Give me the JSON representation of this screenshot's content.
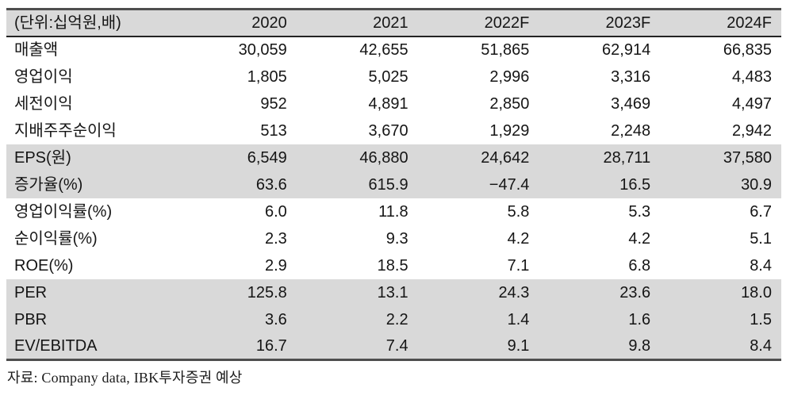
{
  "colors": {
    "row_shade": "#d9d9d9",
    "border_dark": "#4e4e4e",
    "header_rule": "#232323",
    "text": "#151515"
  },
  "table": {
    "unit_label": "(단위:십억원,배)",
    "columns": [
      "2020",
      "2021",
      "2022F",
      "2023F",
      "2024F"
    ],
    "rows": [
      {
        "label": "매출액",
        "values": [
          "30,059",
          "42,655",
          "51,865",
          "62,914",
          "66,835"
        ],
        "shaded": false
      },
      {
        "label": "영업이익",
        "values": [
          "1,805",
          "5,025",
          "2,996",
          "3,316",
          "4,483"
        ],
        "shaded": false
      },
      {
        "label": "세전이익",
        "values": [
          "952",
          "4,891",
          "2,850",
          "3,469",
          "4,497"
        ],
        "shaded": false
      },
      {
        "label": "지배주주순이익",
        "values": [
          "513",
          "3,670",
          "1,929",
          "2,248",
          "2,942"
        ],
        "shaded": false
      },
      {
        "label": "EPS(원)",
        "values": [
          "6,549",
          "46,880",
          "24,642",
          "28,711",
          "37,580"
        ],
        "shaded": true
      },
      {
        "label": "증가율(%)",
        "values": [
          "63.6",
          "615.9",
          "−47.4",
          "16.5",
          "30.9"
        ],
        "shaded": true
      },
      {
        "label": "영업이익률(%)",
        "values": [
          "6.0",
          "11.8",
          "5.8",
          "5.3",
          "6.7"
        ],
        "shaded": false
      },
      {
        "label": "순이익률(%)",
        "values": [
          "2.3",
          "9.3",
          "4.2",
          "4.2",
          "5.1"
        ],
        "shaded": false
      },
      {
        "label": "ROE(%)",
        "values": [
          "2.9",
          "18.5",
          "7.1",
          "6.8",
          "8.4"
        ],
        "shaded": false
      },
      {
        "label": "PER",
        "values": [
          "125.8",
          "13.1",
          "24.3",
          "23.6",
          "18.0"
        ],
        "shaded": true
      },
      {
        "label": "PBR",
        "values": [
          "3.6",
          "2.2",
          "1.4",
          "1.6",
          "1.5"
        ],
        "shaded": true
      },
      {
        "label": "EV/EBITDA",
        "values": [
          "16.7",
          "7.4",
          "9.1",
          "9.8",
          "8.4"
        ],
        "shaded": true
      }
    ],
    "source_note": "자료: Company data, IBK투자증권 예상"
  }
}
